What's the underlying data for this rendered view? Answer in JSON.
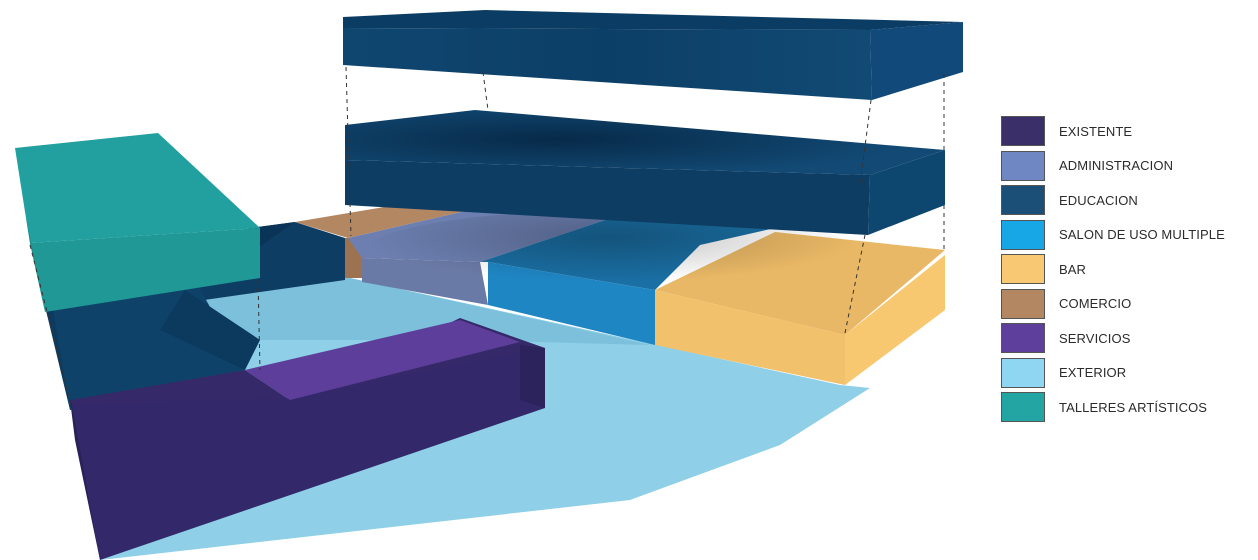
{
  "colors": {
    "existente": "#3a2f6b",
    "existente_dark": "#2e2460",
    "existente_top": "#35296a",
    "administracion": "#7a86c6",
    "educacion": "#1a4a72",
    "educacion_top": "#0f3b62",
    "educacion_side": "#0b3a60",
    "salon": "#1f86c4",
    "bar": "#f5c46b",
    "bar_top": "#e7b764",
    "comercio": "#b48763",
    "servicios": "#5d3f9b",
    "exterior": "#8ccfe8",
    "talleres": "#27a8a6",
    "talleres_side": "#1f9896"
  },
  "legend": [
    {
      "label": "EXISTENTE",
      "color": "#3b2f6a",
      "icon": "existente-swatch"
    },
    {
      "label": "ADMINISTRACION",
      "color": "#6f88c4",
      "icon": "administracion-swatch"
    },
    {
      "label": "EDUCACION",
      "color": "#1c4f78",
      "icon": "educacion-swatch"
    },
    {
      "label": "SALON DE USO MULTIPLE",
      "color": "#18a7e6",
      "icon": "salon-swatch"
    },
    {
      "label": "BAR",
      "color": "#f8c873",
      "icon": "bar-swatch"
    },
    {
      "label": "COMERCIO",
      "color": "#b48763",
      "icon": "comercio-swatch"
    },
    {
      "label": "SERVICIOS",
      "color": "#5f3f9c",
      "icon": "servicios-swatch"
    },
    {
      "label": "EXTERIOR",
      "color": "#8fd6f2",
      "icon": "exterior-swatch"
    },
    {
      "label": "TALLERES ARTÍSTICOS",
      "color": "#22a5a3",
      "icon": "talleres-swatch"
    }
  ]
}
